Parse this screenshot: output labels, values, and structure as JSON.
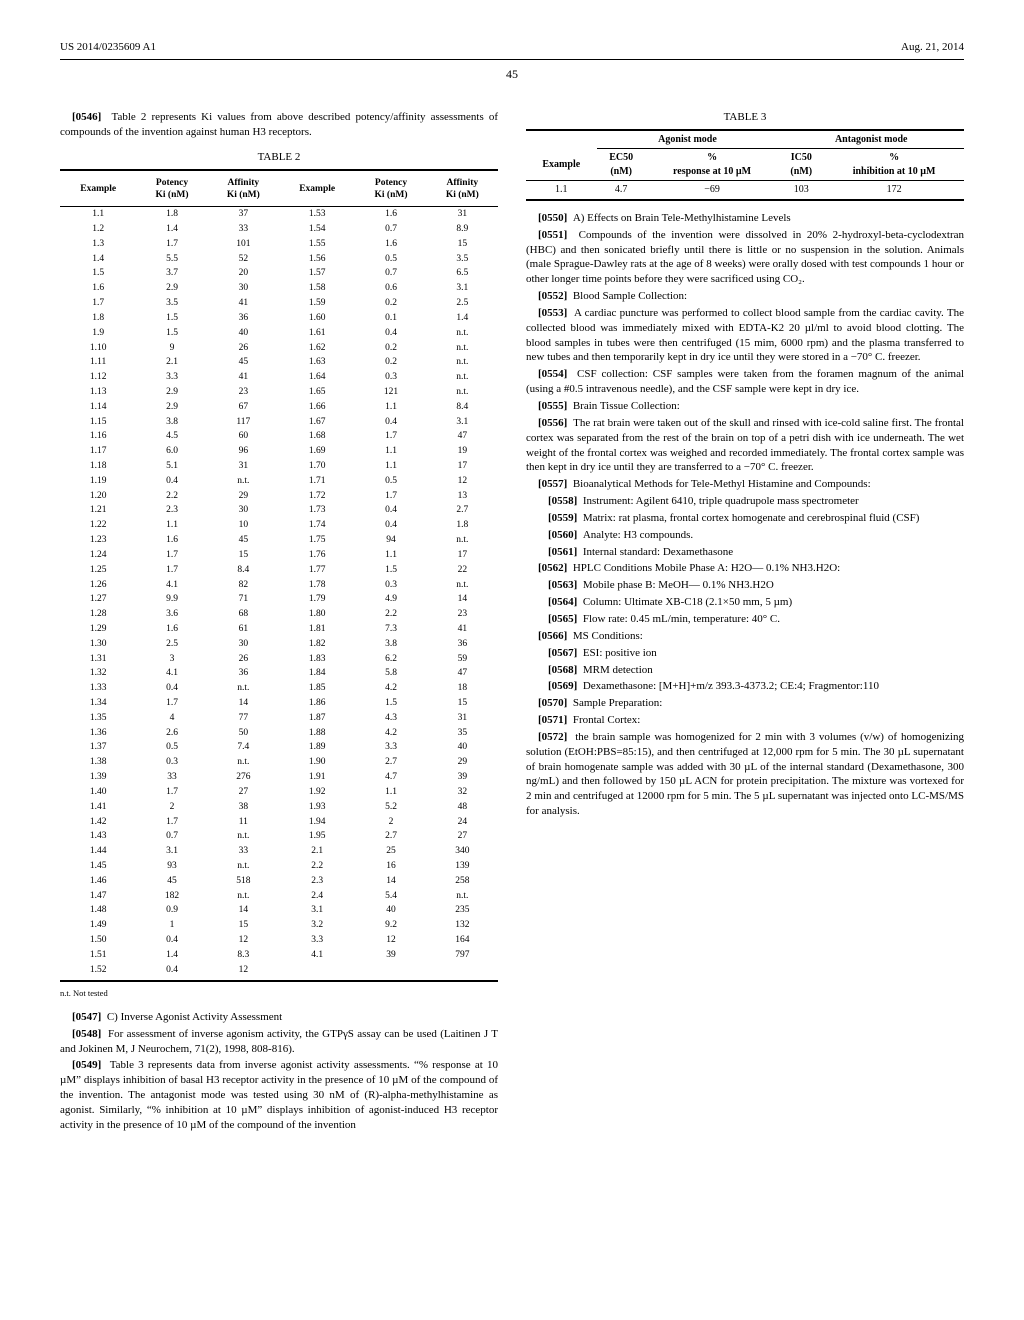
{
  "header": {
    "left": "US 2014/0235609 A1",
    "right": "Aug. 21, 2014"
  },
  "page_number": "45",
  "p0546": {
    "num": "[0546]",
    "text": "Table 2 represents Ki values from above described potency/affinity assessments of compounds of the invention against human H3 receptors."
  },
  "table2": {
    "title": "TABLE 2",
    "cols": [
      "Example",
      "Potency Ki (nM)",
      "Affinity Ki (nM)",
      "Example",
      "Potency Ki (nM)",
      "Affinity Ki (nM)"
    ],
    "rows": [
      [
        "1.1",
        "1.8",
        "37",
        "1.53",
        "1.6",
        "31"
      ],
      [
        "1.2",
        "1.4",
        "33",
        "1.54",
        "0.7",
        "8.9"
      ],
      [
        "1.3",
        "1.7",
        "101",
        "1.55",
        "1.6",
        "15"
      ],
      [
        "1.4",
        "5.5",
        "52",
        "1.56",
        "0.5",
        "3.5"
      ],
      [
        "1.5",
        "3.7",
        "20",
        "1.57",
        "0.7",
        "6.5"
      ],
      [
        "1.6",
        "2.9",
        "30",
        "1.58",
        "0.6",
        "3.1"
      ],
      [
        "1.7",
        "3.5",
        "41",
        "1.59",
        "0.2",
        "2.5"
      ],
      [
        "1.8",
        "1.5",
        "36",
        "1.60",
        "0.1",
        "1.4"
      ],
      [
        "1.9",
        "1.5",
        "40",
        "1.61",
        "0.4",
        "n.t."
      ],
      [
        "1.10",
        "9",
        "26",
        "1.62",
        "0.2",
        "n.t."
      ],
      [
        "1.11",
        "2.1",
        "45",
        "1.63",
        "0.2",
        "n.t."
      ],
      [
        "1.12",
        "3.3",
        "41",
        "1.64",
        "0.3",
        "n.t."
      ],
      [
        "1.13",
        "2.9",
        "23",
        "1.65",
        "121",
        "n.t."
      ],
      [
        "1.14",
        "2.9",
        "67",
        "1.66",
        "1.1",
        "8.4"
      ],
      [
        "1.15",
        "3.8",
        "117",
        "1.67",
        "0.4",
        "3.1"
      ],
      [
        "1.16",
        "4.5",
        "60",
        "1.68",
        "1.7",
        "47"
      ],
      [
        "1.17",
        "6.0",
        "96",
        "1.69",
        "1.1",
        "19"
      ],
      [
        "1.18",
        "5.1",
        "31",
        "1.70",
        "1.1",
        "17"
      ],
      [
        "1.19",
        "0.4",
        "n.t.",
        "1.71",
        "0.5",
        "12"
      ],
      [
        "1.20",
        "2.2",
        "29",
        "1.72",
        "1.7",
        "13"
      ],
      [
        "1.21",
        "2.3",
        "30",
        "1.73",
        "0.4",
        "2.7"
      ],
      [
        "1.22",
        "1.1",
        "10",
        "1.74",
        "0.4",
        "1.8"
      ],
      [
        "1.23",
        "1.6",
        "45",
        "1.75",
        "94",
        "n.t."
      ],
      [
        "1.24",
        "1.7",
        "15",
        "1.76",
        "1.1",
        "17"
      ],
      [
        "1.25",
        "1.7",
        "8.4",
        "1.77",
        "1.5",
        "22"
      ],
      [
        "1.26",
        "4.1",
        "82",
        "1.78",
        "0.3",
        "n.t."
      ],
      [
        "1.27",
        "9.9",
        "71",
        "1.79",
        "4.9",
        "14"
      ],
      [
        "1.28",
        "3.6",
        "68",
        "1.80",
        "2.2",
        "23"
      ],
      [
        "1.29",
        "1.6",
        "61",
        "1.81",
        "7.3",
        "41"
      ],
      [
        "1.30",
        "2.5",
        "30",
        "1.82",
        "3.8",
        "36"
      ],
      [
        "1.31",
        "3",
        "26",
        "1.83",
        "6.2",
        "59"
      ],
      [
        "1.32",
        "4.1",
        "36",
        "1.84",
        "5.8",
        "47"
      ],
      [
        "1.33",
        "0.4",
        "n.t.",
        "1.85",
        "4.2",
        "18"
      ],
      [
        "1.34",
        "1.7",
        "14",
        "1.86",
        "1.5",
        "15"
      ],
      [
        "1.35",
        "4",
        "77",
        "1.87",
        "4.3",
        "31"
      ],
      [
        "1.36",
        "2.6",
        "50",
        "1.88",
        "4.2",
        "35"
      ],
      [
        "1.37",
        "0.5",
        "7.4",
        "1.89",
        "3.3",
        "40"
      ],
      [
        "1.38",
        "0.3",
        "n.t.",
        "1.90",
        "2.7",
        "29"
      ],
      [
        "1.39",
        "33",
        "276",
        "1.91",
        "4.7",
        "39"
      ],
      [
        "1.40",
        "1.7",
        "27",
        "1.92",
        "1.1",
        "32"
      ],
      [
        "1.41",
        "2",
        "38",
        "1.93",
        "5.2",
        "48"
      ],
      [
        "1.42",
        "1.7",
        "11",
        "1.94",
        "2",
        "24"
      ],
      [
        "1.43",
        "0.7",
        "n.t.",
        "1.95",
        "2.7",
        "27"
      ],
      [
        "1.44",
        "3.1",
        "33",
        "2.1",
        "25",
        "340"
      ],
      [
        "1.45",
        "93",
        "n.t.",
        "2.2",
        "16",
        "139"
      ],
      [
        "1.46",
        "45",
        "518",
        "2.3",
        "14",
        "258"
      ],
      [
        "1.47",
        "182",
        "n.t.",
        "2.4",
        "5.4",
        "n.t."
      ],
      [
        "1.48",
        "0.9",
        "14",
        "3.1",
        "40",
        "235"
      ],
      [
        "1.49",
        "1",
        "15",
        "3.2",
        "9.2",
        "132"
      ],
      [
        "1.50",
        "0.4",
        "12",
        "3.3",
        "12",
        "164"
      ],
      [
        "1.51",
        "1.4",
        "8.3",
        "4.1",
        "39",
        "797"
      ],
      [
        "1.52",
        "0.4",
        "12",
        "",
        "",
        ""
      ]
    ],
    "footnote": "n.t. Not tested"
  },
  "p0547": {
    "num": "[0547]",
    "text": "C) Inverse Agonist Activity Assessment"
  },
  "p0548": {
    "num": "[0548]",
    "text": "For assessment of inverse agonism activity, the GTPγS assay can be used (Laitinen J T and Jokinen M, J Neurochem, 71(2), 1998, 808-816)."
  },
  "p0549": {
    "num": "[0549]",
    "text": "Table 3 represents data from inverse agonist activity assessments. “% response at 10 µM” displays inhibition of basal H3 receptor activity in the presence of 10 µM of the compound of the invention. The antagonist mode was tested using 30 nM of (R)-alpha-methylhistamine as agonist. Similarly, “% inhibition at 10 µM” displays inhibition of agonist-induced H3 receptor activity in the presence of 10 µM of the compound of the invention"
  },
  "table3": {
    "title": "TABLE 3",
    "group_headers": [
      "Agonist mode",
      "Antagonist mode"
    ],
    "cols": [
      "Example",
      "EC50 (nM)",
      "% response at 10 µM",
      "IC50 (nM)",
      "% inhibition at 10 µM"
    ],
    "row": [
      "1.1",
      "4.7",
      "−69",
      "103",
      "172"
    ]
  },
  "p0550": {
    "num": "[0550]",
    "text": "A) Effects on Brain Tele-Methylhistamine Levels"
  },
  "p0551": {
    "num": "[0551]",
    "text": "Compounds of the invention were dissolved in 20% 2-hydroxyl-beta-cyclodextran (HBC) and then sonicated briefly until there is little or no suspension in the solution. Animals (male Sprague-Dawley rats at the age of 8 weeks) were orally dosed with test compounds 1 hour or other longer time points before they were sacrificed using CO₂."
  },
  "p0552": {
    "num": "[0552]",
    "text": "Blood Sample Collection:"
  },
  "p0553": {
    "num": "[0553]",
    "text": "A cardiac puncture was performed to collect blood sample from the cardiac cavity. The collected blood was immediately mixed with EDTA-K2 20 µl/ml to avoid blood clotting. The blood samples in tubes were then centrifuged (15 mim, 6000 rpm) and the plasma transferred to new tubes and then temporarily kept in dry ice until they were stored in a −70° C. freezer."
  },
  "p0554": {
    "num": "[0554]",
    "text": "CSF collection: CSF samples were taken from the foramen magnum of the animal (using a #0.5 intravenous needle), and the CSF sample were kept in dry ice."
  },
  "p0555": {
    "num": "[0555]",
    "text": "Brain Tissue Collection:"
  },
  "p0556": {
    "num": "[0556]",
    "text": "The rat brain were taken out of the skull and rinsed with ice-cold saline first. The frontal cortex was separated from the rest of the brain on top of a petri dish with ice underneath. The wet weight of the frontal cortex was weighed and recorded immediately. The frontal cortex sample was then kept in dry ice until they are transferred to a −70° C. freezer."
  },
  "p0557": {
    "num": "[0557]",
    "text": "Bioanalytical Methods for Tele-Methyl Histamine and Compounds:"
  },
  "p0558": {
    "num": "[0558]",
    "text": "Instrument: Agilent 6410, triple quadrupole mass spectrometer"
  },
  "p0559": {
    "num": "[0559]",
    "text": "Matrix: rat plasma, frontal cortex homogenate and cerebrospinal fluid (CSF)"
  },
  "p0560": {
    "num": "[0560]",
    "text": "Analyte: H3 compounds."
  },
  "p0561": {
    "num": "[0561]",
    "text": "Internal standard: Dexamethasone"
  },
  "p0562": {
    "num": "[0562]",
    "text": "HPLC Conditions Mobile Phase A: H2O— 0.1% NH3.H2O:"
  },
  "p0563": {
    "num": "[0563]",
    "text": "Mobile phase B: MeOH— 0.1% NH3.H2O"
  },
  "p0564": {
    "num": "[0564]",
    "text": "Column: Ultimate XB-C18 (2.1×50 mm, 5 µm)"
  },
  "p0565": {
    "num": "[0565]",
    "text": "Flow rate: 0.45 mL/min, temperature: 40° C."
  },
  "p0566": {
    "num": "[0566]",
    "text": "MS Conditions:"
  },
  "p0567": {
    "num": "[0567]",
    "text": "ESI: positive ion"
  },
  "p0568": {
    "num": "[0568]",
    "text": "MRM detection"
  },
  "p0569": {
    "num": "[0569]",
    "text": "Dexamethasone: [M+H]+m/z 393.3-4373.2; CE:4; Fragmentor:110"
  },
  "p0570": {
    "num": "[0570]",
    "text": "Sample Preparation:"
  },
  "p0571": {
    "num": "[0571]",
    "text": "Frontal Cortex:"
  },
  "p0572": {
    "num": "[0572]",
    "text": "the brain sample was homogenized for 2 min with 3 volumes (v/w) of homogenizing solution (EtOH:PBS=85:15), and then centrifuged at 12,000 rpm for 5 min. The 30 µL supernatant of brain homogenate sample was added with 30 µL of the internal standard (Dexamethasone, 300 ng/mL) and then followed by 150 µL ACN for protein precipitation. The mixture was vortexed for 2 min and centrifuged at 12000 rpm for 5 min. The 5 µL supernatant was injected onto LC-MS/MS for analysis."
  }
}
